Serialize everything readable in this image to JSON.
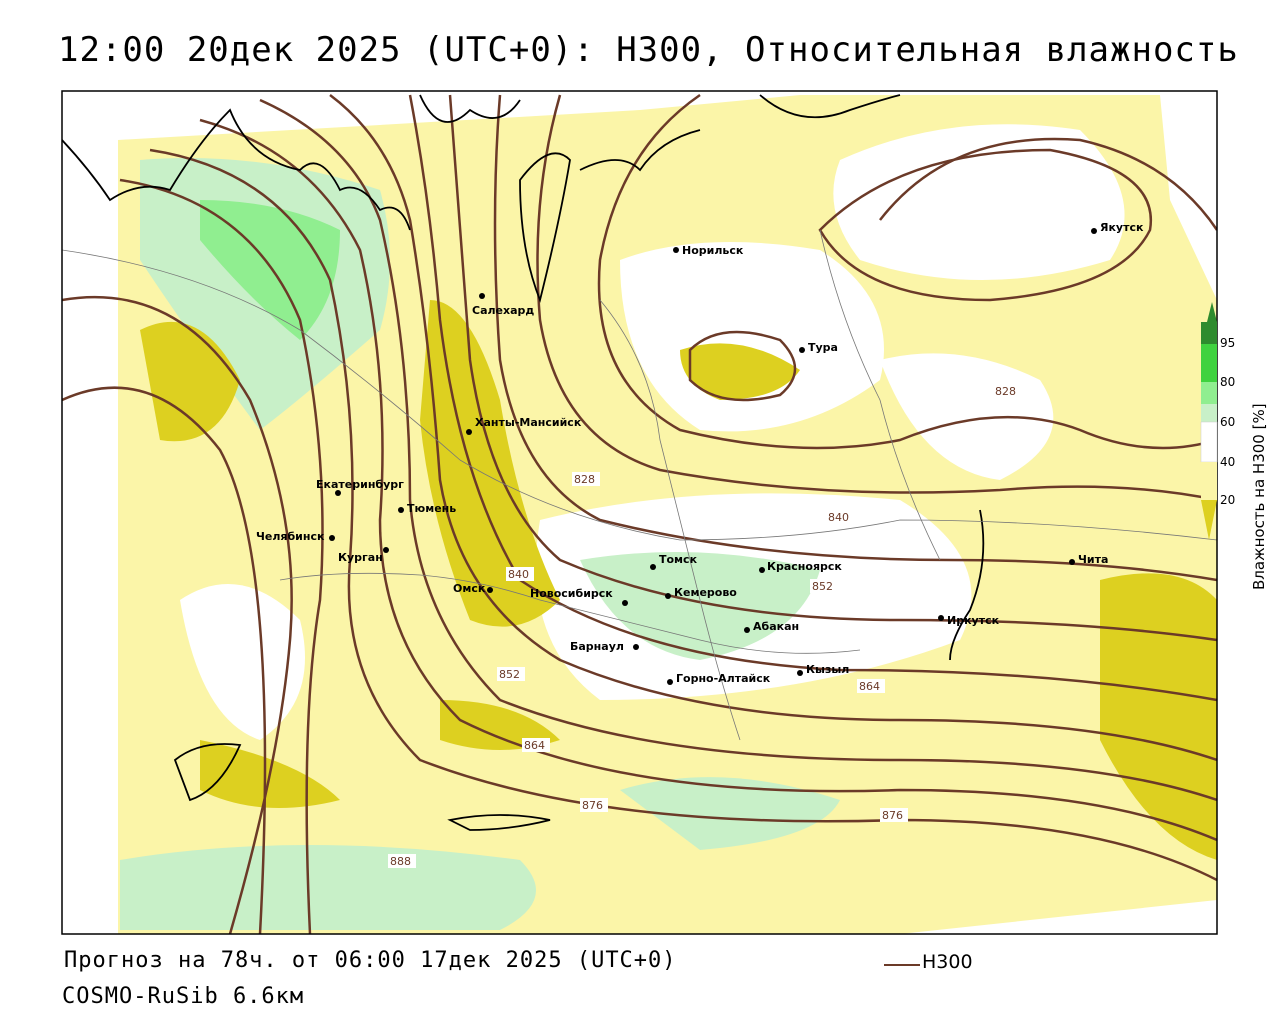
{
  "title": "12:00 20дек 2025 (UTC+0): H300, Относительная влажность",
  "footer": {
    "forecast": "Прогноз на 78ч. от 06:00 17дек 2025 (UTC+0)",
    "model": "COSMO-RuSib 6.6км",
    "legend_label": "H300"
  },
  "colorbar": {
    "title": "Влажность на H300 [%]",
    "ticks": [
      "95",
      "80",
      "60",
      "40",
      "20"
    ],
    "colors": [
      "#2e8b2e",
      "#3fd23f",
      "#90ee90",
      "#c8f0c8",
      "#ffffff",
      "#fbf5a8",
      "#ddd020"
    ]
  },
  "colors": {
    "isoline": "#6b3a28",
    "dry": "#ddd020",
    "semidry": "#fbf5a8",
    "moist": "#c8f0c8",
    "wet": "#90ee90"
  },
  "cities": [
    "Якутск",
    "Норильск",
    "Салехард",
    "Тура",
    "Ханты-Мансийск",
    "Екатеринбург",
    "Тюмень",
    "Челябинск",
    "Курган",
    "Омск",
    "Томск",
    "Красноярск",
    "Новосибирск",
    "Кемерово",
    "Абакан",
    "Барнаул",
    "Иркутск",
    "Горно-Алтайск",
    "Кызыл",
    "Чита"
  ],
  "isoline_labels": [
    "828",
    "828",
    "840",
    "840",
    "852",
    "852",
    "864",
    "864",
    "876",
    "876",
    "888"
  ]
}
